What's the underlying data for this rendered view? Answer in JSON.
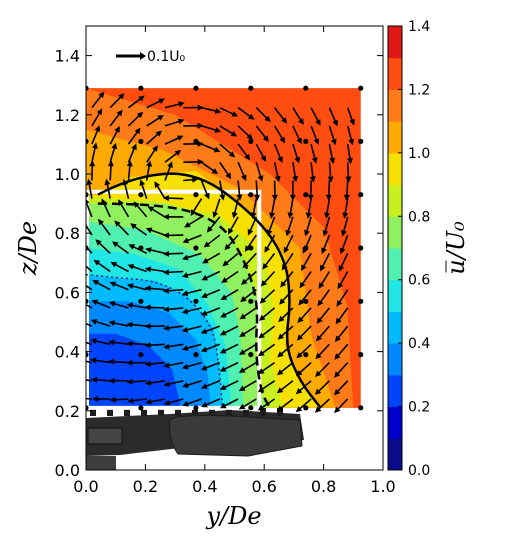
{
  "chart_data": {
    "type": "contour",
    "title": "",
    "xlabel": "y/De",
    "ylabel": "z/De",
    "xlim": [
      0.0,
      1.0
    ],
    "ylim": [
      0.0,
      1.5
    ],
    "xticks": [
      "0.0",
      "0.2",
      "0.4",
      "0.6",
      "0.8",
      "1.0"
    ],
    "yticks": [
      "0.0",
      "0.2",
      "0.4",
      "0.6",
      "0.8",
      "1.0",
      "1.2",
      "1.4"
    ],
    "colorbar": {
      "label": "u̅/U₀",
      "min": 0.0,
      "max": 1.4,
      "ticks": [
        "0.0",
        "0.2",
        "0.4",
        "0.6",
        "0.8",
        "1.0",
        "1.2",
        "1.4"
      ],
      "levels": [
        0.0,
        0.1,
        0.2,
        0.3,
        0.4,
        0.5,
        0.6,
        0.7,
        0.8,
        0.9,
        1.0,
        1.1,
        1.2,
        1.3,
        1.4
      ],
      "colors": [
        "#0a0a8a",
        "#0000cc",
        "#0044ff",
        "#0088ff",
        "#00bbff",
        "#20e6e6",
        "#50f0b0",
        "#90f060",
        "#c8f020",
        "#f6e000",
        "#ffaa00",
        "#ff7a18",
        "#ff4c10",
        "#e01818",
        "#8a1010"
      ]
    },
    "reference_vector": {
      "label": "0.1U₀",
      "magnitude": 0.1
    },
    "measurement_region": {
      "y": [
        0.0,
        0.58
      ],
      "z": [
        0.21,
        0.94
      ]
    },
    "outer_grid": {
      "y": [
        0.0,
        0.185,
        0.37,
        0.555,
        0.74,
        0.925
      ],
      "z": [
        0.21,
        0.39,
        0.57,
        0.75,
        0.93,
        1.11,
        1.29
      ]
    },
    "contour_lines": {
      "u_1_0_solid": [
        [
          0.04,
          0.93
        ],
        [
          0.15,
          0.99
        ],
        [
          0.37,
          1.01
        ],
        [
          0.57,
          0.86
        ],
        [
          0.67,
          0.72
        ],
        [
          0.69,
          0.57
        ],
        [
          0.67,
          0.42
        ],
        [
          0.72,
          0.3
        ],
        [
          0.79,
          0.21
        ]
      ],
      "u_0_9_dashed": [
        [
          0.04,
          0.9
        ],
        [
          0.27,
          0.9
        ],
        [
          0.45,
          0.84
        ],
        [
          0.53,
          0.72
        ],
        [
          0.58,
          0.57
        ],
        [
          0.57,
          0.4
        ],
        [
          0.59,
          0.26
        ],
        [
          0.62,
          0.21
        ]
      ],
      "u_0_6_dotted": [
        [
          0.0,
          0.66
        ],
        [
          0.1,
          0.65
        ],
        [
          0.23,
          0.64
        ],
        [
          0.34,
          0.59
        ],
        [
          0.43,
          0.48
        ],
        [
          0.45,
          0.33
        ],
        [
          0.46,
          0.21
        ]
      ]
    },
    "legend": "none",
    "grid": false
  }
}
